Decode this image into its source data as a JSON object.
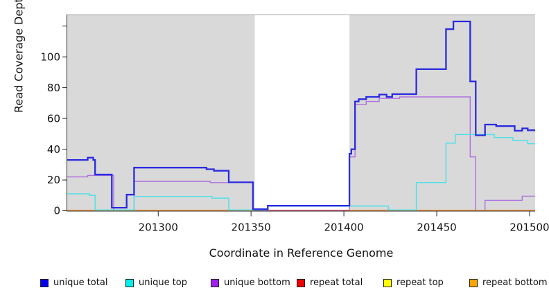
{
  "figure": {
    "xlabel": "Coordinate in Reference Genome",
    "ylabel": "Read Coverage Depth"
  },
  "legend": {
    "items": [
      {
        "label": "unique total",
        "color": "#0000EE"
      },
      {
        "label": "unique top",
        "color": "#00EEEE"
      },
      {
        "label": "unique bottom",
        "color": "#A020F0"
      },
      {
        "label": "repeat total",
        "color": "#EE0000"
      },
      {
        "label": "repeat top",
        "color": "#FFFF00"
      },
      {
        "label": "repeat bottom",
        "color": "#FFA500"
      }
    ]
  },
  "chart_data": {
    "type": "line",
    "subtype": "step-coverage",
    "title": "",
    "xlabel": "Coordinate in Reference Genome",
    "ylabel": "Read Coverage Depth",
    "xlim": [
      201251,
      201503
    ],
    "ylim": [
      0,
      127.5
    ],
    "xticks": [
      201300,
      201350,
      201400,
      201450,
      201500
    ],
    "yticks": [
      {
        "v": 0,
        "label": "0"
      },
      {
        "v": 20,
        "label": "20"
      },
      {
        "v": 40,
        "label": "40"
      },
      {
        "v": 60,
        "label": "60"
      },
      {
        "v": 80,
        "label": "80"
      },
      {
        "v": 100,
        "label": "100"
      },
      {
        "v": 120,
        "label": ""
      }
    ],
    "grid": false,
    "panel_background": "#D9D9D9",
    "masked_region": {
      "start": 201352,
      "end": 201403,
      "color": "#FFFFFF"
    },
    "legend_position": "bottom",
    "series": [
      {
        "name": "unique bottom",
        "legend_color": "#A020F0",
        "line_color": "#AE6FE0",
        "line_width": 1.4,
        "steps": [
          [
            201251,
            22
          ],
          [
            201262,
            23
          ],
          [
            201276,
            0
          ],
          [
            201287,
            19.1
          ],
          [
            201328,
            18.3
          ],
          [
            201351,
            0
          ],
          [
            201403,
            35
          ],
          [
            201406,
            69
          ],
          [
            201412,
            71
          ],
          [
            201419,
            73
          ],
          [
            201430,
            74
          ],
          [
            201468,
            35
          ],
          [
            201471,
            0
          ],
          [
            201476,
            6.8
          ],
          [
            201496,
            9.5
          ]
        ]
      },
      {
        "name": "repeat top",
        "legend_color": "#FFFF00",
        "line_color": "#FFFF00",
        "line_width": 1.3,
        "steps": [
          [
            201251,
            0
          ],
          [
            201352,
            null
          ],
          [
            201403,
            0
          ]
        ]
      },
      {
        "name": "repeat total",
        "legend_color": "#EE0000",
        "line_color": "#E25A78",
        "line_width": 1.3,
        "steps": [
          [
            201251,
            0.3
          ]
        ]
      },
      {
        "name": "repeat bottom",
        "legend_color": "#FFA500",
        "line_color": "#FFA520",
        "line_width": 2,
        "steps": [
          [
            201251,
            0
          ],
          [
            201352,
            null
          ],
          [
            201403,
            0
          ]
        ]
      },
      {
        "name": "unique top",
        "legend_color": "#00EEEE",
        "line_color": "#4FE1E8",
        "line_width": 1.5,
        "steps": [
          [
            201251,
            11
          ],
          [
            201263,
            10
          ],
          [
            201266,
            0.5
          ],
          [
            201287,
            9.3
          ],
          [
            201329,
            8.2
          ],
          [
            201338,
            0.5
          ],
          [
            201359,
            3
          ],
          [
            201424,
            0.5
          ],
          [
            201439,
            18.3
          ],
          [
            201455,
            44
          ],
          [
            201460,
            49.5
          ],
          [
            201481,
            47.6
          ],
          [
            201491,
            45.6
          ],
          [
            201499,
            43.6
          ]
        ]
      },
      {
        "name": "unique total",
        "legend_color": "#0000EE",
        "line_color": "#2A2ADF",
        "line_width": 2.3,
        "steps": [
          [
            201251,
            33
          ],
          [
            201262,
            34.5
          ],
          [
            201265,
            33
          ],
          [
            201266,
            23.5
          ],
          [
            201275,
            2
          ],
          [
            201283,
            10.5
          ],
          [
            201287,
            28
          ],
          [
            201326,
            27
          ],
          [
            201330,
            26
          ],
          [
            201338,
            18.5
          ],
          [
            201351,
            1
          ],
          [
            201359,
            3.3
          ],
          [
            201403,
            37
          ],
          [
            201404,
            40
          ],
          [
            201406,
            71
          ],
          [
            201408,
            72.5
          ],
          [
            201412,
            74
          ],
          [
            201419,
            75.5
          ],
          [
            201423,
            74
          ],
          [
            201426,
            75.8
          ],
          [
            201439,
            92
          ],
          [
            201455,
            118
          ],
          [
            201459,
            123
          ],
          [
            201468,
            84
          ],
          [
            201471,
            49
          ],
          [
            201476,
            56
          ],
          [
            201482,
            55
          ],
          [
            201492,
            52
          ],
          [
            201496,
            53.5
          ],
          [
            201499,
            52.3
          ]
        ]
      }
    ]
  }
}
